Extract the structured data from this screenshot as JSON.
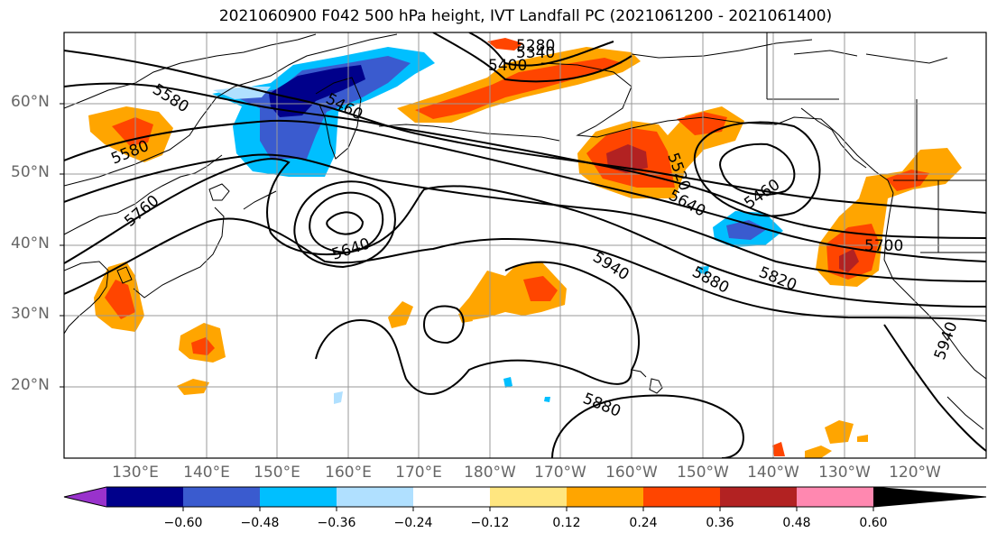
{
  "title": "2021060900 F042 500 hPa height, IVT Landfall PC (2021061200 - 2021061400)",
  "lat_labels": [
    "60°N",
    "50°N",
    "40°N",
    "30°N",
    "20°N"
  ],
  "lon_labels": [
    "130°E",
    "140°E",
    "150°E",
    "160°E",
    "170°E",
    "180°W",
    "170°W",
    "160°W",
    "150°W",
    "140°W",
    "130°W",
    "120°W"
  ],
  "contour_labels": [
    "5280",
    "5340",
    "5400",
    "5460",
    "5580",
    "5580",
    "5760",
    "5640",
    "5520",
    "5640",
    "5460",
    "5700",
    "5940",
    "5880",
    "5820",
    "5880",
    "5940"
  ],
  "colorbar": {
    "ticks": [
      "−0.60",
      "−0.48",
      "−0.36",
      "−0.24",
      "−0.12",
      "0.12",
      "0.24",
      "0.36",
      "0.48",
      "0.60"
    ],
    "colors": [
      "#9932cc",
      "#00008b",
      "#3a5bcf",
      "#00bfff",
      "#b0e0ff",
      "#ffffff",
      "#ffe680",
      "#ffa500",
      "#ff4500",
      "#b22222",
      "#ff88b0"
    ]
  }
}
